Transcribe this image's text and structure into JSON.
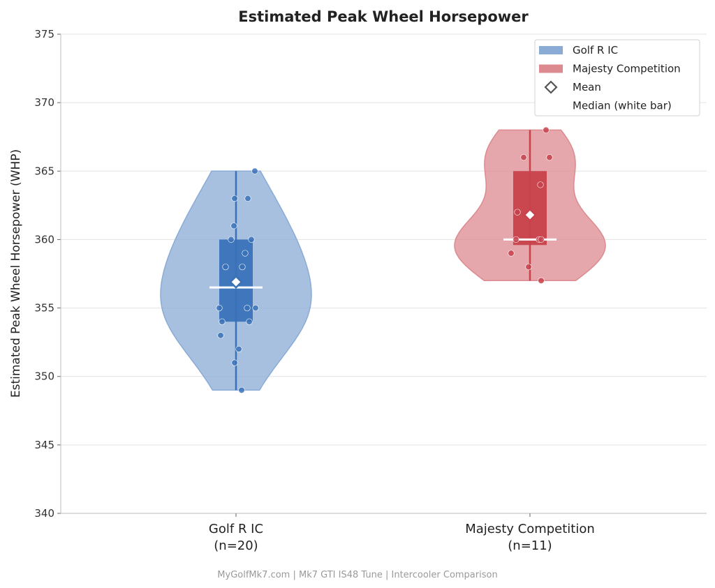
{
  "chart_data": {
    "type": "violin",
    "title": "Estimated Peak Wheel Horsepower",
    "ylabel": "Estimated Peak Wheel Horsepower (WHP)",
    "xlabel": "",
    "ylim": [
      340,
      375
    ],
    "yticks": [
      340,
      345,
      350,
      355,
      360,
      365,
      370,
      375
    ],
    "grid": "horizontal",
    "legend_position": "top-right",
    "categories": [
      "Golf R IC",
      "Majesty Competition"
    ],
    "category_labels": [
      {
        "name": "Golf R IC",
        "n_label": "(n=20)"
      },
      {
        "name": "Majesty Competition",
        "n_label": "(n=11)"
      }
    ],
    "series": [
      {
        "name": "Golf R IC",
        "color": "#3a72b8",
        "fill": "#8aabd6",
        "values": [
          365,
          363,
          363,
          361,
          360,
          360,
          359,
          358,
          358,
          356.5,
          356.9,
          355,
          355,
          355,
          354,
          354,
          353,
          352,
          351,
          349
        ],
        "min": 349,
        "q1": 354,
        "median": 356.5,
        "q3": 360,
        "max": 365,
        "mean": 356.9
      },
      {
        "name": "Majesty Competition",
        "color": "#c8414b",
        "fill": "#dc8a8f",
        "values": [
          368,
          366,
          366,
          364,
          362,
          360,
          360,
          360,
          359,
          358,
          357
        ],
        "min": 357,
        "q1": 359.6,
        "median": 360,
        "q3": 365,
        "max": 368,
        "mean": 361.8
      }
    ],
    "legend": [
      {
        "label": "Golf R IC",
        "kind": "patch",
        "color": "#8aabd6"
      },
      {
        "label": "Majesty Competition",
        "kind": "patch",
        "color": "#dc8a8f"
      },
      {
        "label": "Mean",
        "kind": "diamond",
        "color": "#555555"
      },
      {
        "label": "Median  (white bar)",
        "kind": "none",
        "color": ""
      }
    ],
    "footer": "MyGolfMk7.com  |  Mk7 GTI IS48 Tune  |  Intercooler Comparison"
  }
}
